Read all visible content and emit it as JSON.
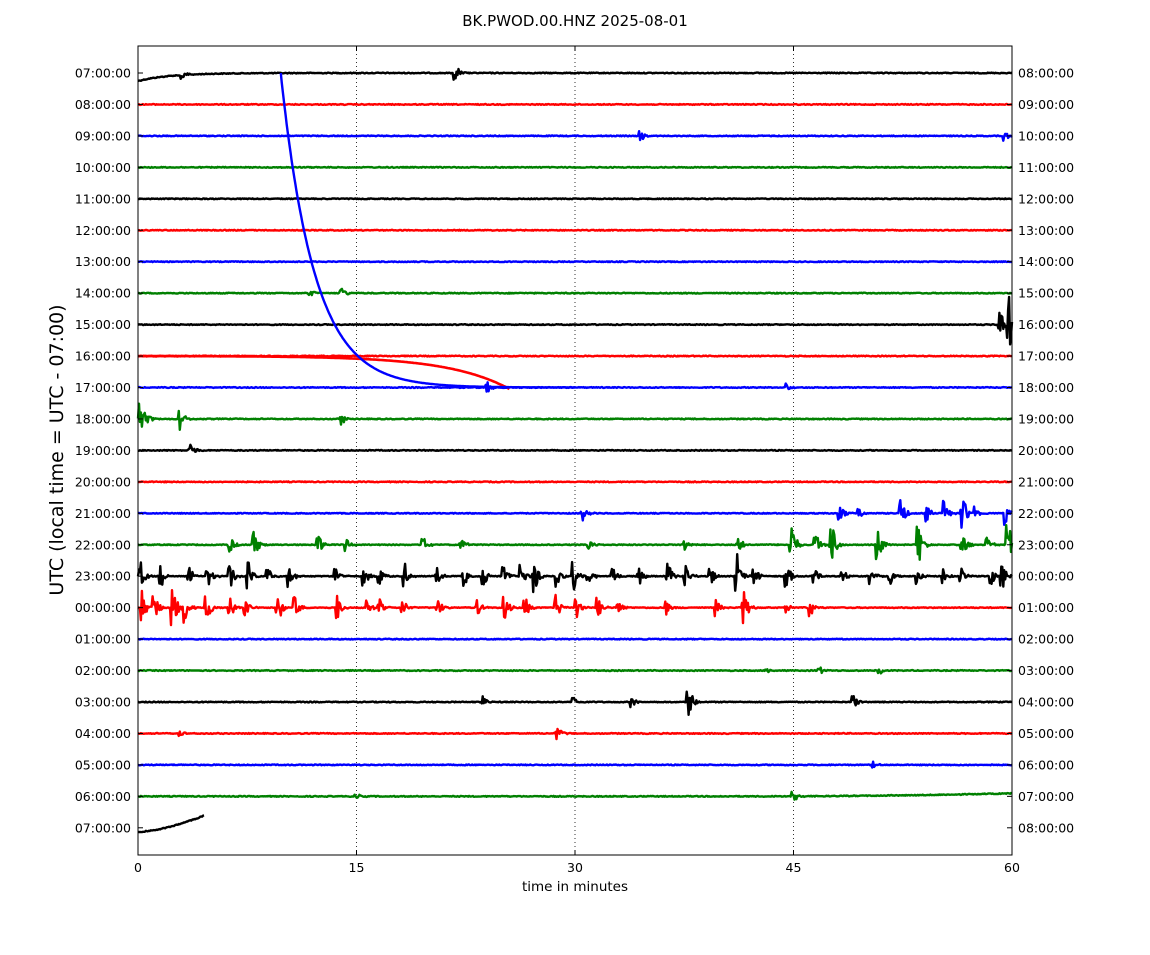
{
  "chart_data": {
    "type": "line",
    "title": "BK.PWOD.00.HNZ 2025-08-01",
    "xlabel": "time in minutes",
    "ylabel": "UTC (local time = UTC - 07:00)",
    "xlim": [
      0,
      60
    ],
    "x_ticks": [
      0,
      15,
      30,
      45,
      60
    ],
    "x_tick_labels": [
      "0",
      "15",
      "30",
      "45",
      "60"
    ],
    "grid": "vertical dotted lines at each x tick",
    "legend": "none",
    "left_tick_labels": [
      "07:00:00",
      "08:00:00",
      "09:00:00",
      "10:00:00",
      "11:00:00",
      "12:00:00",
      "13:00:00",
      "14:00:00",
      "15:00:00",
      "16:00:00",
      "17:00:00",
      "18:00:00",
      "19:00:00",
      "20:00:00",
      "21:00:00",
      "22:00:00",
      "23:00:00",
      "00:00:00",
      "01:00:00",
      "02:00:00",
      "03:00:00",
      "04:00:00",
      "05:00:00",
      "06:00:00",
      "07:00:00"
    ],
    "right_tick_labels": [
      "08:00:00",
      "09:00:00",
      "10:00:00",
      "11:00:00",
      "12:00:00",
      "13:00:00",
      "14:00:00",
      "15:00:00",
      "16:00:00",
      "17:00:00",
      "18:00:00",
      "19:00:00",
      "20:00:00",
      "21:00:00",
      "22:00:00",
      "23:00:00",
      "00:00:00",
      "01:00:00",
      "02:00:00",
      "03:00:00",
      "04:00:00",
      "05:00:00",
      "06:00:00",
      "07:00:00",
      "08:00:00"
    ],
    "colors": [
      "#000000",
      "#ff0000",
      "#0000ff",
      "#008000"
    ],
    "series": [
      {
        "values": [
          0,
          0,
          0
        ],
        "color": "#000000",
        "drift": "start-curve",
        "bursts": [
          [
            3.0,
            0.3
          ],
          [
            21.8,
            0.3
          ]
        ]
      },
      {
        "values": [
          0,
          0,
          0
        ],
        "color": "#ff0000",
        "bursts": []
      },
      {
        "values": [
          0,
          0,
          0
        ],
        "color": "#0000ff",
        "bursts": [
          [
            34.5,
            0.2
          ],
          [
            59.5,
            0.2
          ]
        ]
      },
      {
        "values": [
          0,
          0,
          0
        ],
        "color": "#008000",
        "bursts": []
      },
      {
        "values": [
          0,
          0,
          0
        ],
        "color": "#000000",
        "bursts": []
      },
      {
        "values": [
          0,
          0,
          0
        ],
        "color": "#ff0000",
        "bursts": []
      },
      {
        "values": [
          0,
          0,
          0
        ],
        "color": "#0000ff",
        "bursts": []
      },
      {
        "values": [
          0,
          0,
          0
        ],
        "color": "#008000",
        "bursts": [
          [
            11.8,
            0.15
          ],
          [
            14.0,
            0.2
          ]
        ]
      },
      {
        "values": [
          0,
          0,
          0
        ],
        "color": "#000000",
        "bursts": [
          [
            59.2,
            0.6
          ],
          [
            59.8,
            1.0
          ]
        ]
      },
      {
        "values": [
          0,
          0,
          0
        ],
        "color": "#ff0000",
        "drift": "red-curve",
        "bursts": []
      },
      {
        "values": [
          0,
          0,
          0
        ],
        "color": "#0000ff",
        "drift": "blue-curve",
        "bursts": [
          [
            24.0,
            0.2
          ],
          [
            44.5,
            0.2
          ]
        ]
      },
      {
        "values": [
          0,
          0,
          0
        ],
        "color": "#008000",
        "bursts": [
          [
            0.2,
            0.6
          ],
          [
            0.5,
            0.3
          ],
          [
            2.9,
            0.4
          ],
          [
            14.0,
            0.2
          ]
        ]
      },
      {
        "values": [
          0,
          0,
          0
        ],
        "color": "#000000",
        "bursts": [
          [
            3.6,
            0.3
          ]
        ]
      },
      {
        "values": [
          0,
          0,
          0
        ],
        "color": "#ff0000",
        "bursts": []
      },
      {
        "values": [
          0,
          0,
          0
        ],
        "color": "#0000ff",
        "bursts": [
          [
            30.5,
            0.3
          ],
          [
            48.2,
            0.4
          ],
          [
            49.5,
            0.2
          ],
          [
            52.4,
            0.6
          ],
          [
            54.2,
            0.3
          ],
          [
            55.3,
            0.5
          ],
          [
            56.6,
            0.7
          ],
          [
            57.5,
            0.3
          ],
          [
            59.6,
            0.4
          ]
        ]
      },
      {
        "values": [
          0,
          0,
          0
        ],
        "color": "#008000",
        "bursts": [
          [
            6.3,
            0.3
          ],
          [
            8.0,
            0.5
          ],
          [
            12.4,
            0.4
          ],
          [
            14.3,
            0.25
          ],
          [
            19.6,
            0.25
          ],
          [
            22.2,
            0.25
          ],
          [
            31.0,
            0.3
          ],
          [
            37.5,
            0.25
          ],
          [
            41.2,
            0.35
          ],
          [
            44.8,
            1.0
          ],
          [
            46.5,
            0.5
          ],
          [
            47.6,
            0.9
          ],
          [
            50.8,
            0.6
          ],
          [
            53.6,
            0.7
          ],
          [
            56.6,
            0.5
          ],
          [
            58.3,
            0.3
          ],
          [
            59.7,
            1.1
          ]
        ]
      },
      {
        "values": [
          0,
          0,
          0
        ],
        "color": "#000000",
        "bursts": [
          [
            0.2,
            0.5
          ],
          [
            1.6,
            0.4
          ],
          [
            3.5,
            0.35
          ],
          [
            4.8,
            0.4
          ],
          [
            6.3,
            0.6
          ],
          [
            7.6,
            0.5
          ],
          [
            8.9,
            0.4
          ],
          [
            10.4,
            0.4
          ],
          [
            13.6,
            0.3
          ],
          [
            15.5,
            0.35
          ],
          [
            16.6,
            0.3
          ],
          [
            18.3,
            0.5
          ],
          [
            20.5,
            0.35
          ],
          [
            22.4,
            0.35
          ],
          [
            23.7,
            0.45
          ],
          [
            25.1,
            0.4
          ],
          [
            26.3,
            0.5
          ],
          [
            27.2,
            0.6
          ],
          [
            28.8,
            0.4
          ],
          [
            29.9,
            0.6
          ],
          [
            30.9,
            0.4
          ],
          [
            32.6,
            0.35
          ],
          [
            34.4,
            0.35
          ],
          [
            36.4,
            0.5
          ],
          [
            37.6,
            0.4
          ],
          [
            39.3,
            0.35
          ],
          [
            41.1,
            0.9
          ],
          [
            42.3,
            0.4
          ],
          [
            44.5,
            0.6
          ],
          [
            46.4,
            0.4
          ],
          [
            48.4,
            0.3
          ],
          [
            50.3,
            0.3
          ],
          [
            51.6,
            0.4
          ],
          [
            53.5,
            0.3
          ],
          [
            55.3,
            0.3
          ],
          [
            56.5,
            0.3
          ],
          [
            58.6,
            0.3
          ],
          [
            59.3,
            0.6
          ]
        ]
      },
      {
        "values": [
          0,
          0,
          0
        ],
        "color": "#ff0000",
        "bursts": [
          [
            0.3,
            0.6
          ],
          [
            1.1,
            0.6
          ],
          [
            2.4,
            0.9
          ],
          [
            3.2,
            0.6
          ],
          [
            4.7,
            0.6
          ],
          [
            6.3,
            0.4
          ],
          [
            7.4,
            0.3
          ],
          [
            9.6,
            0.6
          ],
          [
            10.8,
            0.4
          ],
          [
            13.7,
            0.5
          ],
          [
            15.8,
            0.3
          ],
          [
            16.6,
            0.3
          ],
          [
            18.2,
            0.3
          ],
          [
            20.6,
            0.3
          ],
          [
            23.3,
            0.3
          ],
          [
            25.2,
            0.4
          ],
          [
            26.6,
            0.4
          ],
          [
            28.7,
            0.5
          ],
          [
            30.1,
            0.4
          ],
          [
            31.6,
            0.35
          ],
          [
            33.0,
            0.25
          ],
          [
            36.3,
            0.25
          ],
          [
            39.7,
            0.3
          ],
          [
            41.6,
            0.6
          ],
          [
            44.5,
            0.2
          ],
          [
            46.1,
            0.4
          ]
        ]
      },
      {
        "values": [
          0,
          0,
          0
        ],
        "color": "#0000ff",
        "bursts": []
      },
      {
        "values": [
          0,
          0,
          0
        ],
        "color": "#008000",
        "bursts": [
          [
            43.2,
            0.15
          ],
          [
            46.8,
            0.15
          ],
          [
            50.9,
            0.15
          ]
        ]
      },
      {
        "values": [
          0,
          0,
          0
        ],
        "color": "#000000",
        "bursts": [
          [
            23.7,
            0.2
          ],
          [
            29.9,
            0.2
          ],
          [
            33.9,
            0.2
          ],
          [
            37.8,
            0.6
          ],
          [
            49.1,
            0.3
          ]
        ]
      },
      {
        "values": [
          0,
          0,
          0
        ],
        "color": "#ff0000",
        "bursts": [
          [
            2.9,
            0.1
          ],
          [
            28.8,
            0.3
          ]
        ]
      },
      {
        "values": [
          0,
          0,
          0
        ],
        "color": "#0000ff",
        "bursts": [
          [
            50.5,
            0.1
          ]
        ]
      },
      {
        "values": [
          0,
          0,
          0
        ],
        "color": "#008000",
        "drift": "end-rise",
        "bursts": [
          [
            15.0,
            0.1
          ],
          [
            45.0,
            0.35
          ]
        ]
      },
      {
        "values": [
          0,
          0,
          0
        ],
        "color": "#000000",
        "drift": "partial-end",
        "end_minute": 4.5,
        "bursts": []
      }
    ]
  }
}
